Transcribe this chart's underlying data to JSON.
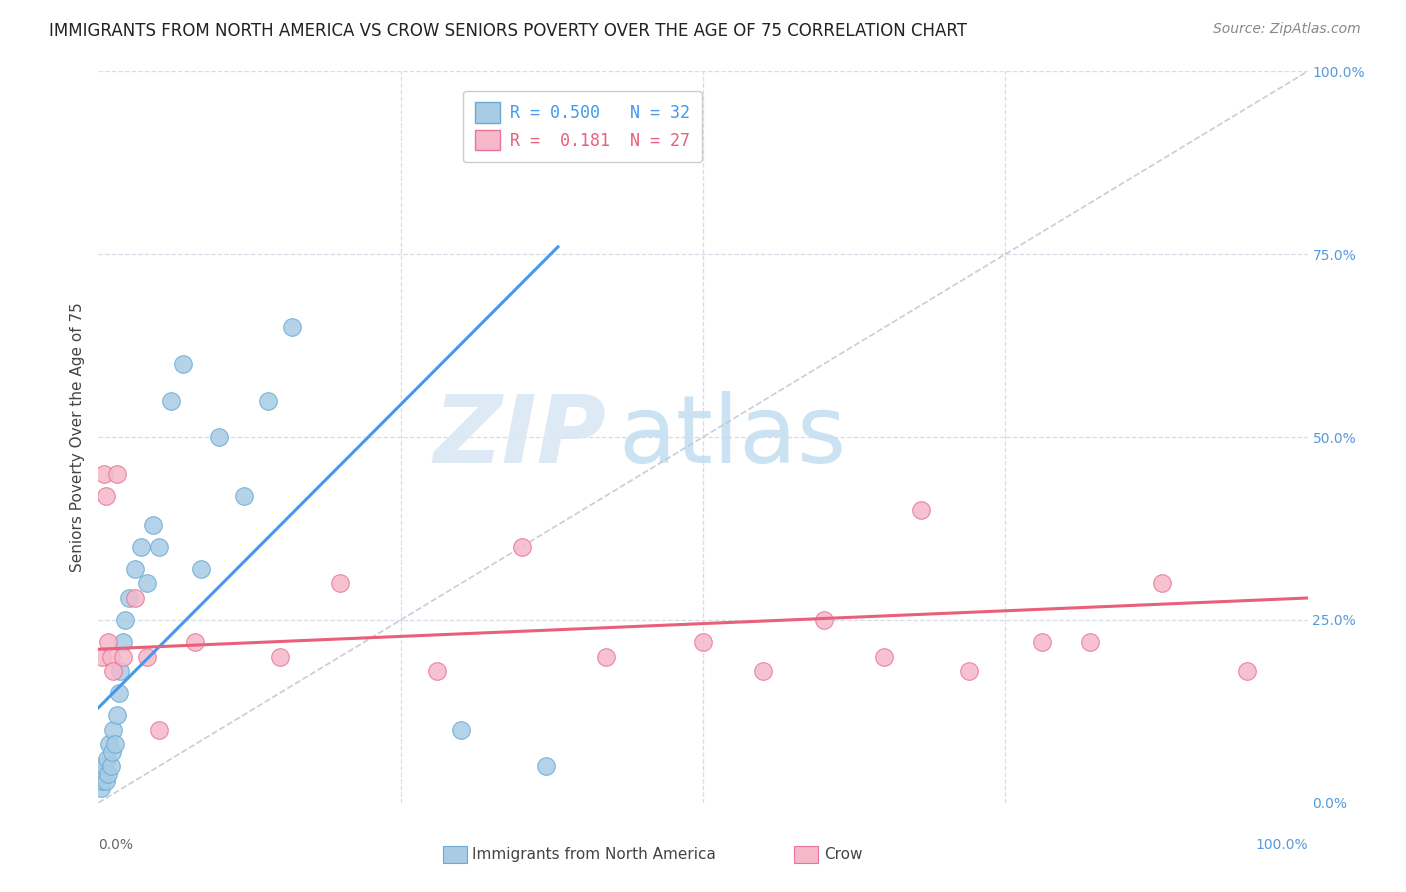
{
  "title": "IMMIGRANTS FROM NORTH AMERICA VS CROW SENIORS POVERTY OVER THE AGE OF 75 CORRELATION CHART",
  "source": "Source: ZipAtlas.com",
  "ylabel": "Seniors Poverty Over the Age of 75",
  "color_blue": "#a8cce4",
  "color_blue_edge": "#6aaad4",
  "color_blue_line": "#4499ee",
  "color_pink": "#f5b8cb",
  "color_pink_edge": "#e87595",
  "color_pink_line": "#e8607a",
  "color_diag": "#c0c8d8",
  "background": "#ffffff",
  "grid_color": "#d8dce8",
  "legend_label1": "Immigrants from North America",
  "legend_label2": "Crow",
  "blue_x": [
    0.2,
    0.3,
    0.4,
    0.5,
    0.6,
    0.7,
    0.8,
    0.9,
    1.0,
    1.1,
    1.2,
    1.4,
    1.5,
    1.7,
    1.8,
    2.0,
    2.2,
    2.5,
    3.0,
    3.5,
    4.0,
    4.5,
    5.0,
    6.0,
    7.0,
    8.5,
    10.0,
    12.0,
    14.0,
    16.0,
    30.0,
    37.0
  ],
  "blue_y": [
    2,
    3,
    4,
    5,
    3,
    6,
    4,
    8,
    5,
    7,
    10,
    8,
    12,
    15,
    18,
    22,
    25,
    28,
    32,
    35,
    30,
    38,
    35,
    55,
    60,
    32,
    50,
    42,
    55,
    65,
    10,
    5
  ],
  "pink_x": [
    0.3,
    0.5,
    0.6,
    0.8,
    1.0,
    1.2,
    1.5,
    2.0,
    3.0,
    4.0,
    5.0,
    8.0,
    15.0,
    20.0,
    28.0,
    35.0,
    42.0,
    50.0,
    55.0,
    60.0,
    65.0,
    68.0,
    72.0,
    78.0,
    82.0,
    88.0,
    95.0
  ],
  "pink_y": [
    20,
    45,
    42,
    22,
    20,
    18,
    45,
    20,
    28,
    20,
    10,
    22,
    20,
    30,
    18,
    35,
    20,
    22,
    18,
    25,
    20,
    40,
    18,
    22,
    22,
    30,
    18
  ],
  "blue_trend_x0": 0.0,
  "blue_trend_y0": 13.0,
  "blue_trend_x1": 38.0,
  "blue_trend_y1": 76.0,
  "pink_trend_x0": 0.0,
  "pink_trend_y0": 21.0,
  "pink_trend_x1": 100.0,
  "pink_trend_y1": 28.0,
  "xlim": [
    0,
    100
  ],
  "ylim": [
    0,
    100
  ],
  "ytick_values": [
    0,
    25,
    50,
    75,
    100
  ],
  "ytick_labels_right": [
    "0.0%",
    "25.0%",
    "50.0%",
    "75.0%",
    "100.0%"
  ],
  "title_fontsize": 12,
  "source_fontsize": 10
}
